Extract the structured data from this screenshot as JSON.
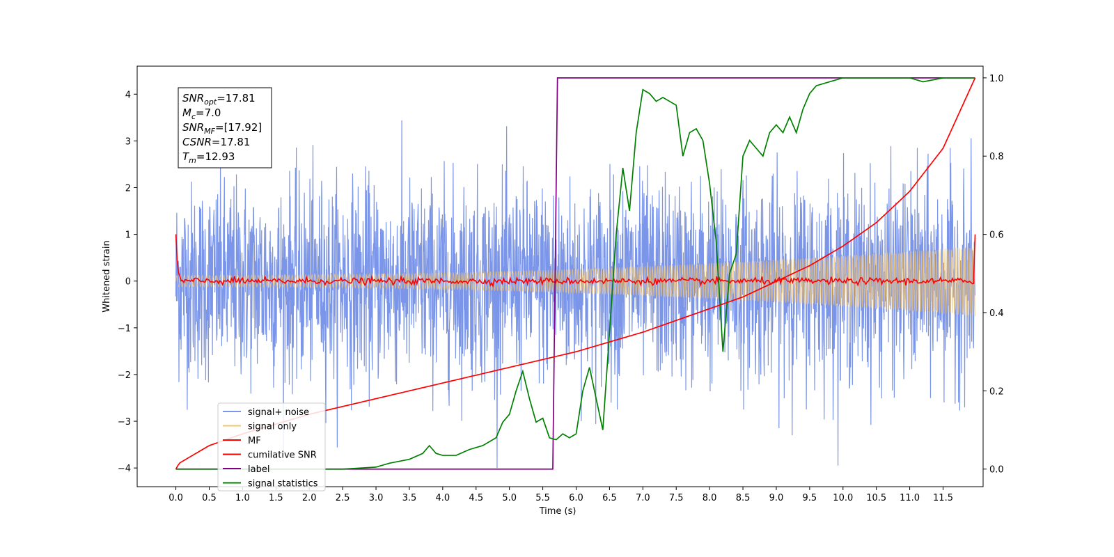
{
  "chart_data": {
    "type": "line",
    "title": "",
    "xlabel": "Time (s)",
    "ylabel": "Whitened strain",
    "xlim": [
      -0.58,
      12.1
    ],
    "ylim": [
      -4.4,
      4.6
    ],
    "y2lim": [
      -0.045,
      1.03
    ],
    "xticks": [
      "0.0",
      "0.5",
      "1.0",
      "1.5",
      "2.0",
      "2.5",
      "3.0",
      "3.5",
      "4.0",
      "4.5",
      "5.0",
      "5.5",
      "6.0",
      "6.5",
      "7.0",
      "7.5",
      "8.0",
      "8.5",
      "9.0",
      "9.5",
      "10.0",
      "10.5",
      "11.0",
      "11.5"
    ],
    "yticks": [
      "4",
      "3",
      "2",
      "1",
      "0",
      "−1",
      "−2",
      "−3",
      "−4"
    ],
    "y2ticks": [
      "1.0",
      "0.8",
      "0.6",
      "0.4",
      "0.2",
      "0.0"
    ],
    "grid": false,
    "legend_position": "lower-left",
    "annotation": {
      "lines": [
        {
          "name": "SNR",
          "sub": "opt",
          "value": "=17.81"
        },
        {
          "name": "M",
          "sub": "c",
          "value": "=7.0"
        },
        {
          "name": "SNR",
          "sub": "MF",
          "value": "=[17.92]"
        },
        {
          "name": "CSNR",
          "sub": "",
          "value": "=17.81"
        },
        {
          "name": "T",
          "sub": "m",
          "value": "=12.93"
        }
      ]
    },
    "series": [
      {
        "name": "signal+ noise",
        "color": "#7b95e8",
        "axis": "left",
        "description_range": [
          -4.0,
          4.2
        ]
      },
      {
        "name": "signal only",
        "color": "#f5c46e",
        "axis": "left",
        "amplitude_start": 0.12,
        "amplitude_end": 0.75
      },
      {
        "name": "MF",
        "color": "#ff0000",
        "axis": "left",
        "start": 1.0,
        "baseline": 0.0,
        "end": 1.0
      },
      {
        "name": "cumilative SNR",
        "color": "#ff0000",
        "axis": "right",
        "x": [
          0.0,
          0.05,
          0.5,
          1.0,
          2.0,
          3.0,
          4.0,
          5.0,
          6.0,
          7.0,
          8.0,
          8.5,
          9.0,
          9.5,
          10.0,
          10.5,
          11.0,
          11.5,
          11.98
        ],
        "y": [
          0.0,
          0.015,
          0.06,
          0.09,
          0.14,
          0.18,
          0.22,
          0.26,
          0.3,
          0.35,
          0.41,
          0.44,
          0.48,
          0.52,
          0.57,
          0.63,
          0.71,
          0.82,
          1.0
        ]
      },
      {
        "name": "label",
        "color": "#800080",
        "axis": "right",
        "x": [
          0.0,
          5.65,
          5.72,
          11.98
        ],
        "y": [
          0.0,
          0.0,
          1.0,
          1.0
        ]
      },
      {
        "name": "signal statistics",
        "color": "#008000",
        "axis": "right",
        "x": [
          0.0,
          1.0,
          2.0,
          2.5,
          3.0,
          3.2,
          3.5,
          3.7,
          3.8,
          3.9,
          4.0,
          4.2,
          4.4,
          4.6,
          4.8,
          4.9,
          5.0,
          5.1,
          5.2,
          5.3,
          5.4,
          5.5,
          5.6,
          5.7,
          5.8,
          5.9,
          6.0,
          6.1,
          6.2,
          6.3,
          6.4,
          6.5,
          6.6,
          6.7,
          6.8,
          6.9,
          7.0,
          7.1,
          7.2,
          7.3,
          7.5,
          7.6,
          7.7,
          7.8,
          7.9,
          8.0,
          8.1,
          8.2,
          8.3,
          8.4,
          8.5,
          8.6,
          8.7,
          8.8,
          8.9,
          9.0,
          9.1,
          9.2,
          9.3,
          9.4,
          9.5,
          9.6,
          9.8,
          10.0,
          10.5,
          11.0,
          11.2,
          11.5,
          11.98
        ],
        "y": [
          0.0,
          0.0,
          0.0,
          0.0,
          0.005,
          0.015,
          0.025,
          0.04,
          0.06,
          0.04,
          0.035,
          0.035,
          0.05,
          0.06,
          0.08,
          0.12,
          0.14,
          0.2,
          0.25,
          0.18,
          0.12,
          0.13,
          0.08,
          0.075,
          0.09,
          0.08,
          0.09,
          0.2,
          0.26,
          0.18,
          0.1,
          0.35,
          0.6,
          0.77,
          0.66,
          0.86,
          0.97,
          0.96,
          0.94,
          0.95,
          0.93,
          0.8,
          0.86,
          0.87,
          0.84,
          0.73,
          0.58,
          0.3,
          0.5,
          0.55,
          0.8,
          0.84,
          0.82,
          0.8,
          0.86,
          0.88,
          0.86,
          0.9,
          0.86,
          0.92,
          0.96,
          0.98,
          0.99,
          1.0,
          1.0,
          1.0,
          0.99,
          1.0,
          1.0
        ]
      }
    ]
  }
}
